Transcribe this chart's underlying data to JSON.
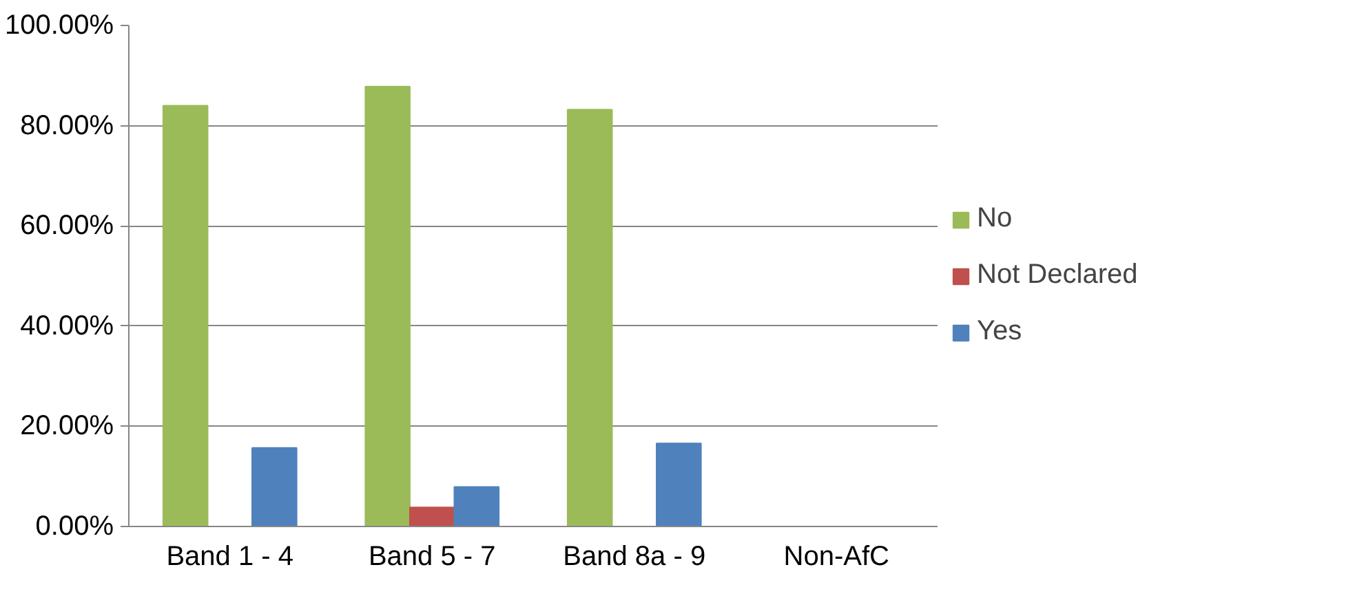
{
  "chart_data": {
    "type": "bar",
    "categories": [
      "Band 1 - 4",
      "Band 5 - 7",
      "Band 8a - 9",
      "Non-AfC"
    ],
    "series": [
      {
        "name": "No",
        "color": "#9bbb59",
        "values": [
          84.0,
          87.8,
          83.2,
          null
        ]
      },
      {
        "name": "Not Declared",
        "color": "#c0504d",
        "values": [
          null,
          3.8,
          null,
          null
        ]
      },
      {
        "name": "Yes",
        "color": "#4f81bd",
        "values": [
          15.7,
          7.9,
          16.6,
          null
        ]
      }
    ],
    "ylim": [
      0,
      100
    ],
    "yticks": [
      {
        "value": 0,
        "label": "0.00%"
      },
      {
        "value": 20,
        "label": "20.00%"
      },
      {
        "value": 40,
        "label": "40.00%"
      },
      {
        "value": 60,
        "label": "60.00%"
      },
      {
        "value": 80,
        "label": "80.00%"
      },
      {
        "value": 100,
        "label": "100.00%"
      }
    ],
    "grid": "y",
    "legend": "right"
  }
}
